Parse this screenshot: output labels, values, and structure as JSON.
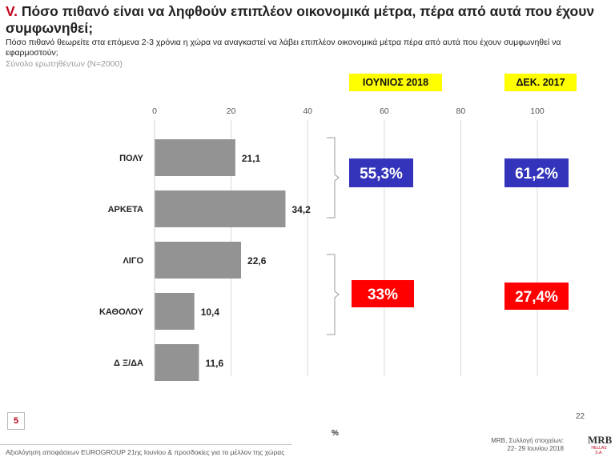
{
  "title_roman": "V.",
  "title_text": "Πόσο πιθανό είναι να ληφθούν επιπλέον οικονομικά μέτρα, πέρα από αυτά που έχουν συμφωνηθεί;",
  "subtitle": "Πόσο πιθανό θεωρείτε στα επόμενα 2-3 χρόνια η χώρα να αναγκαστεί να λάβει επιπλέον οικονομικά μέτρα πέρα από αυτά που έχουν συμφωνηθεί να εφαρμοστούν;",
  "base": "Σύνολο ερωτηθέντων (N=2000)",
  "period_current": "ΙΟΥΝΙΟΣ 2018",
  "period_previous": "ΔΕΚ. 2017",
  "chart_data": {
    "type": "bar",
    "orientation": "horizontal",
    "categories": [
      "ΠΟΛΥ",
      "ΑΡΚΕΤΑ",
      "ΛΙΓΟ",
      "ΚΑΘΟΛΟΥ",
      "Δ Ξ/ΔΑ"
    ],
    "values": [
      21.1,
      34.2,
      22.6,
      10.4,
      11.6
    ],
    "value_labels": [
      "21,1",
      "34,2",
      "22,6",
      "10,4",
      "11,6"
    ],
    "xlim": [
      0,
      100
    ],
    "xticks": [
      0,
      20,
      40,
      60,
      80,
      100
    ],
    "xlabel": "%",
    "grid": true,
    "bar_color": "#939393",
    "groups": [
      {
        "current": "55,3%",
        "previous": "61,2%",
        "color": "#3333bb"
      },
      {
        "current": "33%",
        "previous": "27,4%",
        "color": "#ff0000"
      }
    ]
  },
  "page_badge": "5",
  "footer_left": "Αξιολόγηση αποφάσεων EUROGROUP 21ης Ιουνίου & προσδοκίες για το μέλλον της χώρας",
  "slide_number": "22",
  "footer_right_1": "MRB, Συλλογή στοιχείων:",
  "footer_right_2": "22- 29 Ιουνίου 2018",
  "logo_text": "MRB",
  "logo_sub": "HELLAS S.A."
}
